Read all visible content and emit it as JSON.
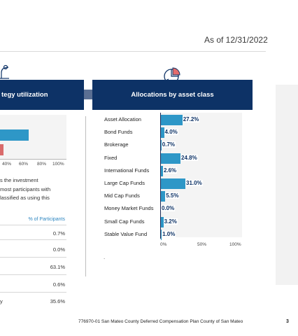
{
  "header": {
    "as_of": "As of 12/31/2022"
  },
  "left_section": {
    "title_fragment": "tegy utilization",
    "axis_ticks": [
      "40%",
      "60%",
      "80%",
      "100%"
    ],
    "paragraph_lines": [
      "s the investment",
      "most participants with",
      "lassified as using this"
    ],
    "column_header": "% of Participants",
    "rows": [
      {
        "label": "",
        "value": "0.7%"
      },
      {
        "label": "",
        "value": "0.0%"
      },
      {
        "label": "",
        "value": "63.1%"
      },
      {
        "label": "",
        "value": "0.6%"
      },
      {
        "label": "y",
        "value": "35.6%"
      }
    ]
  },
  "right_section": {
    "title": "Allocations by asset class",
    "footnote": "."
  },
  "chart_data": {
    "type": "bar",
    "orientation": "horizontal",
    "title": "Allocations by asset class",
    "categories": [
      "Asset Allocation",
      "Bond Funds",
      "Brokerage",
      "Fixed",
      "International Funds",
      "Large Cap Funds",
      "Mid Cap Funds",
      "Money Market Funds",
      "Small Cap Funds",
      "Stable Value Fund"
    ],
    "values": [
      27.2,
      4.0,
      0.7,
      24.8,
      2.6,
      31.0,
      5.5,
      0.0,
      3.2,
      1.0
    ],
    "value_labels": [
      "27.2%",
      "4.0%",
      "0.7%",
      "24.8%",
      "2.6%",
      "31.0%",
      "5.5%",
      "0.0%",
      "3.2%",
      "1.0%"
    ],
    "xlim": [
      0,
      100
    ],
    "x_ticks": [
      "0%",
      "50%",
      "100%"
    ],
    "bar_color": "#2e97c7"
  },
  "footer": {
    "text": "776970-01 San Mateo County Deferred Compensation Plan County of San Mateo",
    "page": "3"
  },
  "colors": {
    "band": "#0d3266",
    "bar": "#2e97c7",
    "accent_text": "#2e86c1"
  }
}
